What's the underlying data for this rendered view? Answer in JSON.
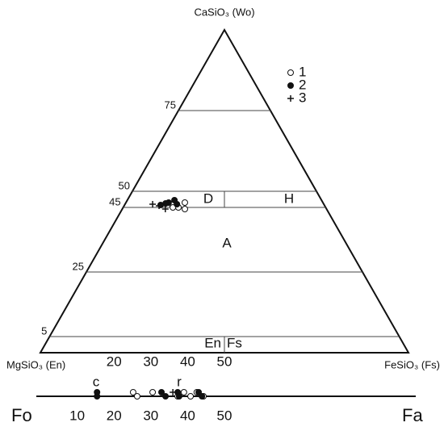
{
  "chart_data": {
    "type": "ternary",
    "top_label": "CaSiO₃ (Wo)",
    "left_label": "MgSiO₃ (En)",
    "right_label": "FeSiO₃ (Fs)",
    "wo_lines": [
      75,
      50,
      45,
      25,
      5
    ],
    "fs_ticks": [
      20,
      30,
      40,
      50
    ],
    "regions": [
      "D",
      "H",
      "A",
      "En",
      "Fs"
    ],
    "series": [
      {
        "name": "1",
        "marker": "open",
        "color": "#111",
        "wo": [
          46,
          45,
          46.5,
          44.5,
          45
        ],
        "fs": [
          12.7,
          15,
          16,
          17,
          13.5
        ]
      },
      {
        "name": "2",
        "marker": "filled",
        "color": "#111",
        "wo": [
          45.75,
          46.5,
          47.25,
          46,
          46.25
        ],
        "fs": [
          9.8,
          11.6,
          12.8,
          14.1,
          10.9
        ]
      },
      {
        "name": "3",
        "marker": "plus",
        "color": "#111",
        "wo": [
          46,
          44.5,
          45.5
        ],
        "fs": [
          7.5,
          11.7,
          9.5
        ]
      }
    ],
    "olivine": {
      "start_label": "Fo",
      "end_label": "Fa",
      "ticks": [
        10,
        20,
        30,
        40,
        50
      ],
      "annotations": [
        "c",
        "r"
      ],
      "series": [
        {
          "name": "1",
          "marker": "open",
          "fa": [
            25.2,
            26.3,
            30.5,
            37.3,
            39,
            40.8,
            42.5,
            44.3
          ]
        },
        {
          "name": "2",
          "marker": "filled",
          "fa": [
            15.4,
            15.4,
            32.9,
            34,
            37.3,
            37.7,
            43,
            43.9
          ]
        },
        {
          "name": "3",
          "marker": "plus",
          "fa": [
            36
          ]
        }
      ]
    }
  }
}
